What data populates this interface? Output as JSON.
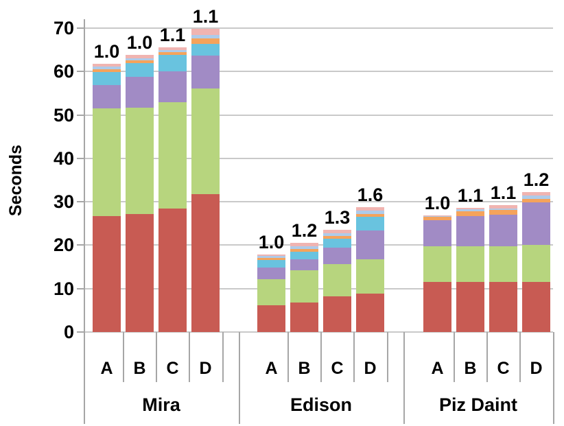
{
  "chart_data": {
    "type": "bar",
    "variant": "stacked-column",
    "title": "",
    "ylabel": "Seconds",
    "xlabel": "",
    "ylim": [
      0,
      70
    ],
    "yticks": [
      0,
      10,
      20,
      30,
      40,
      50,
      60,
      70
    ],
    "grid": true,
    "legend_position": "none",
    "series": [
      {
        "name": "red-segment",
        "color": "#C85B53"
      },
      {
        "name": "green-segment",
        "color": "#B7D57E"
      },
      {
        "name": "purple-segment",
        "color": "#A18BC5"
      },
      {
        "name": "cyan-segment",
        "color": "#69C3DF"
      },
      {
        "name": "orange-segment",
        "color": "#F5A35B"
      },
      {
        "name": "lightblue-segment",
        "color": "#AECBEA"
      },
      {
        "name": "pink-segment",
        "color": "#F0B4B1"
      }
    ],
    "groups": [
      {
        "name": "Mira",
        "bars": [
          {
            "category": "A",
            "ratio_label": "1.0",
            "values": [
              26.7,
              24.8,
              5.4,
              3.0,
              0.6,
              0.6,
              0.6
            ]
          },
          {
            "category": "B",
            "ratio_label": "1.0",
            "values": [
              27.1,
              24.6,
              7.1,
              3.2,
              0.6,
              0.5,
              0.7
            ]
          },
          {
            "category": "C",
            "ratio_label": "1.1",
            "values": [
              28.4,
              24.5,
              7.1,
              3.8,
              0.6,
              0.5,
              0.6
            ]
          },
          {
            "category": "D",
            "ratio_label": "1.1",
            "values": [
              31.7,
              24.4,
              7.5,
              2.7,
              1.3,
              0.8,
              1.5
            ]
          }
        ]
      },
      {
        "name": "Edison",
        "bars": [
          {
            "category": "A",
            "ratio_label": "1.0",
            "values": [
              6.1,
              6.0,
              2.7,
              1.8,
              0.5,
              0.4,
              0.4
            ]
          },
          {
            "category": "B",
            "ratio_label": "1.2",
            "values": [
              6.8,
              7.4,
              2.5,
              1.8,
              0.6,
              0.6,
              0.8
            ]
          },
          {
            "category": "C",
            "ratio_label": "1.3",
            "values": [
              8.2,
              7.4,
              3.9,
              2.0,
              0.6,
              0.7,
              0.8
            ]
          },
          {
            "category": "D",
            "ratio_label": "1.6",
            "values": [
              8.8,
              7.9,
              6.7,
              3.2,
              0.5,
              0.8,
              0.9
            ]
          }
        ]
      },
      {
        "name": "Piz Daint",
        "bars": [
          {
            "category": "A",
            "ratio_label": "1.0",
            "values": [
              11.5,
              8.2,
              6.1,
              0.0,
              0.8,
              0.1,
              0.2
            ]
          },
          {
            "category": "B",
            "ratio_label": "1.1",
            "values": [
              11.5,
              8.2,
              7.0,
              0.0,
              1.1,
              0.4,
              0.4
            ]
          },
          {
            "category": "C",
            "ratio_label": "1.1",
            "values": [
              11.6,
              8.2,
              7.2,
              0.0,
              1.1,
              0.4,
              0.7
            ]
          },
          {
            "category": "D",
            "ratio_label": "1.2",
            "values": [
              11.6,
              8.4,
              9.9,
              0.0,
              0.8,
              0.8,
              0.8
            ]
          }
        ]
      }
    ],
    "colors": {
      "gridline": "#C9C9C9",
      "axis_line": "#A6A6A6",
      "text": "#000000",
      "background": "#FFFFFF"
    }
  }
}
